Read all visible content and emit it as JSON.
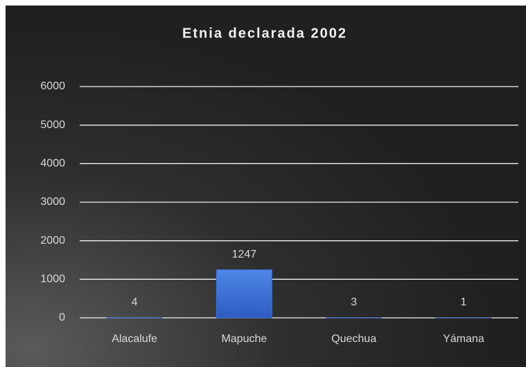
{
  "chart_data": {
    "type": "bar",
    "title": "Etnia declarada 2002",
    "categories": [
      "Alacalufe",
      "Mapuche",
      "Quechua",
      "Yámana"
    ],
    "values": [
      4,
      1247,
      3,
      1
    ],
    "color": "#3a6fd8",
    "ylim": [
      0,
      6000
    ],
    "yticks": [
      0,
      1000,
      2000,
      3000,
      4000,
      5000,
      6000
    ],
    "grid": true
  }
}
